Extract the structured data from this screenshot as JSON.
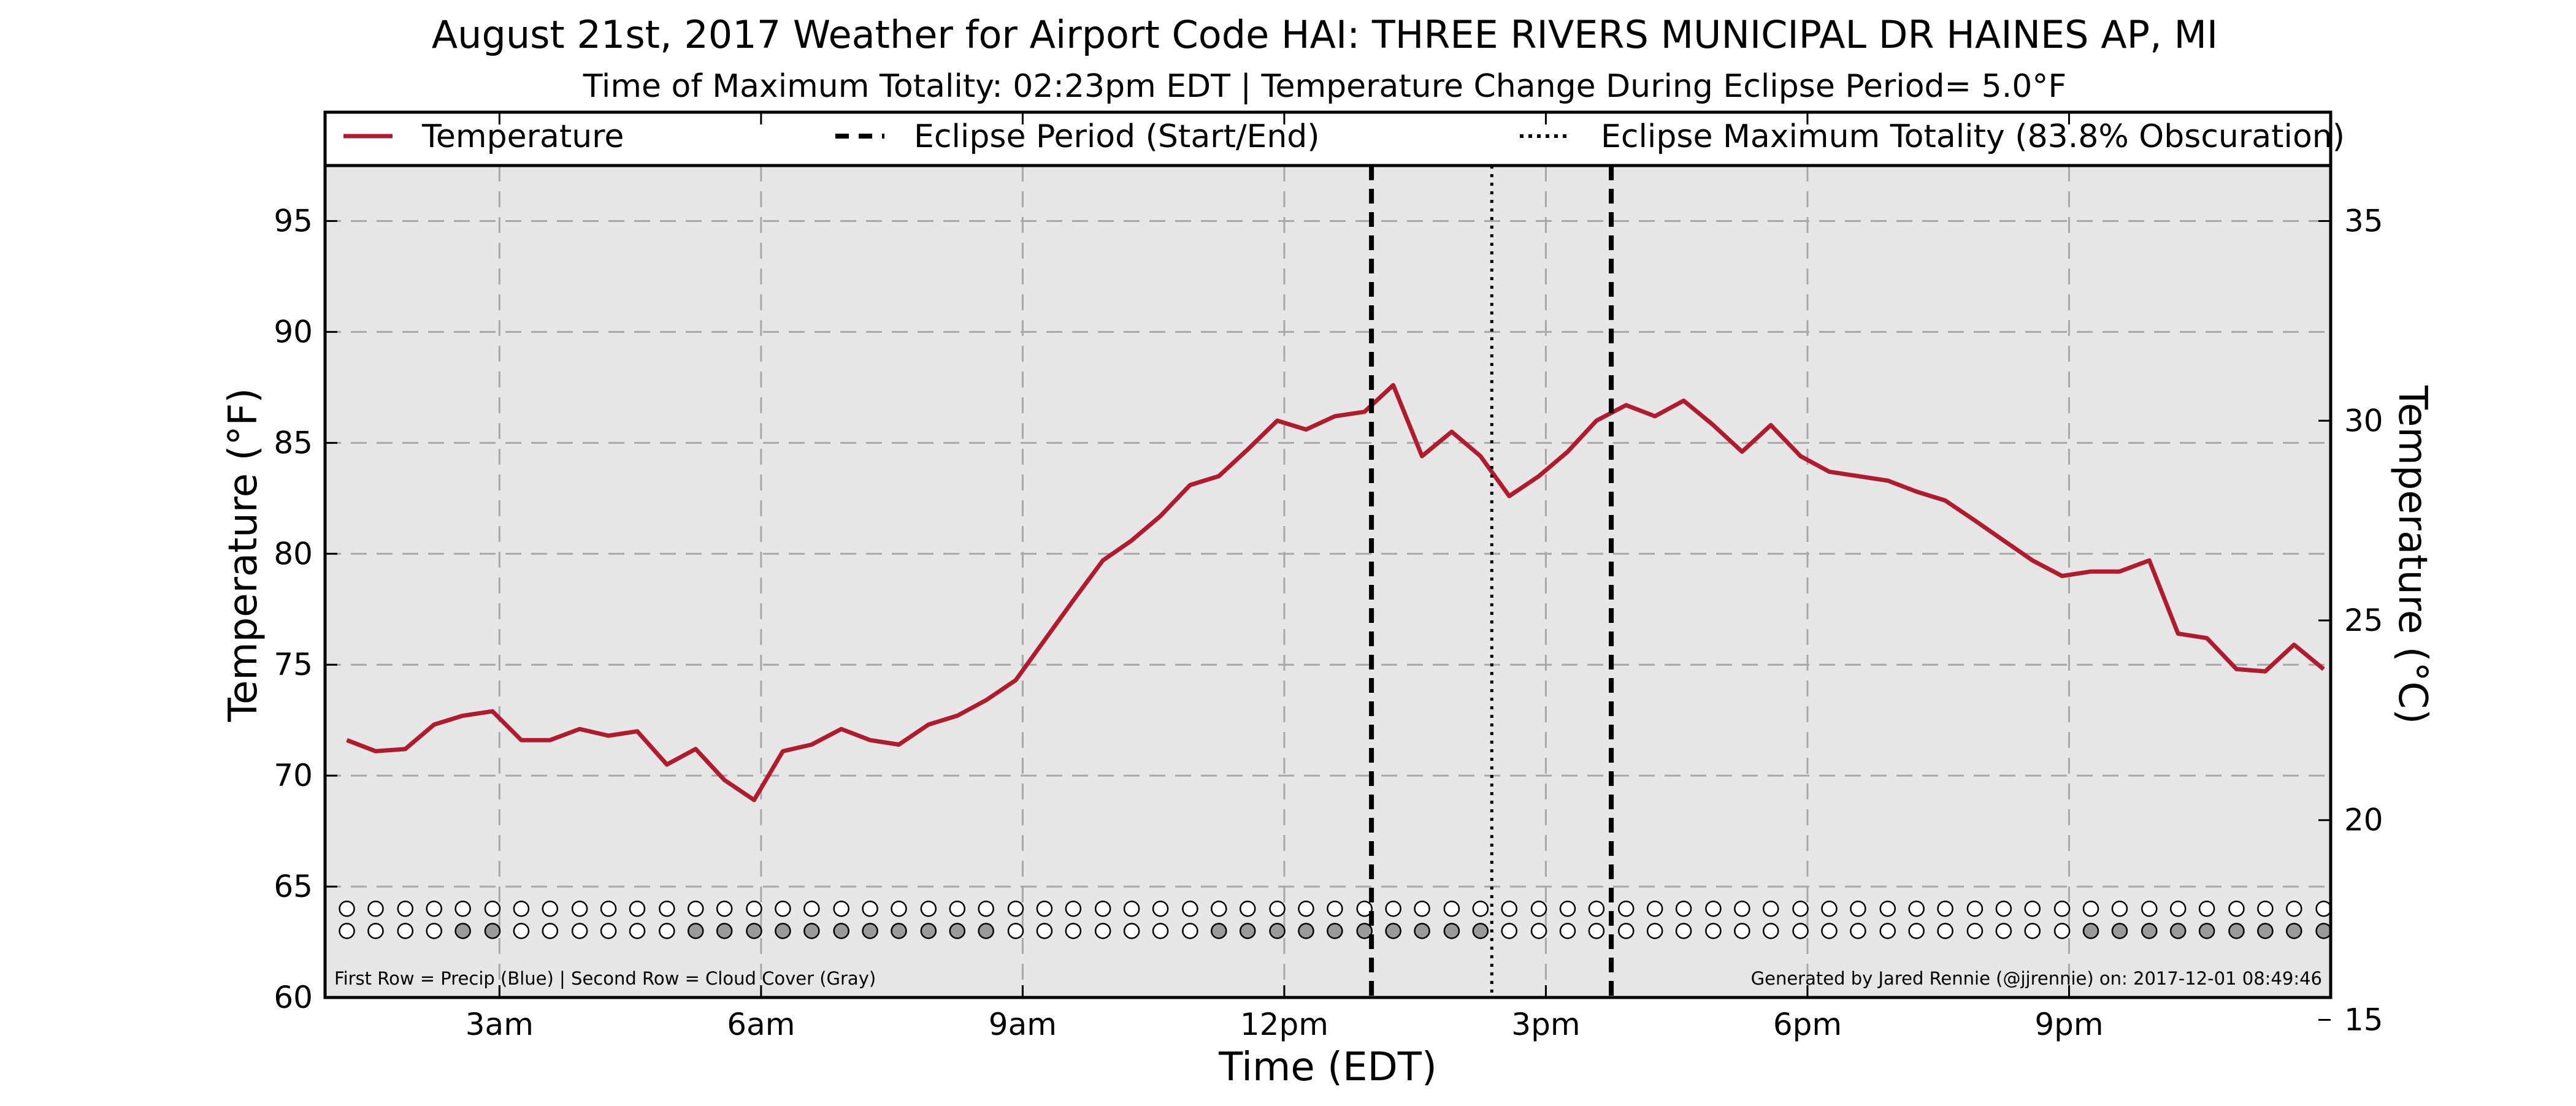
{
  "chart_data": {
    "type": "line",
    "title": "August 21st, 2017 Weather for Airport Code HAI: THREE RIVERS MUNICIPAL DR HAINES AP, MI",
    "subtitle": "Time of Maximum Totality: 02:23pm EDT | Temperature Change During Eclipse Period= 5.0°F",
    "xlabel": "Time (EDT)",
    "ylabel_left": "Temperature (°F)",
    "ylabel_right": "Temperature (°C)",
    "x_unit": "hours after midnight EDT",
    "xlim": [
      1.0,
      24.0
    ],
    "ylim_left": [
      60,
      97.5
    ],
    "ylim_right": [
      15.56,
      36.39
    ],
    "x_ticks": [
      {
        "value": 3,
        "label": "3am"
      },
      {
        "value": 6,
        "label": "6am"
      },
      {
        "value": 9,
        "label": "9am"
      },
      {
        "value": 12,
        "label": "12pm"
      },
      {
        "value": 15,
        "label": "3pm"
      },
      {
        "value": 18,
        "label": "6pm"
      },
      {
        "value": 21,
        "label": "9pm"
      }
    ],
    "y_ticks_left": [
      {
        "value": 60,
        "label": "60"
      },
      {
        "value": 65,
        "label": "65"
      },
      {
        "value": 70,
        "label": "70"
      },
      {
        "value": 75,
        "label": "75"
      },
      {
        "value": 80,
        "label": "80"
      },
      {
        "value": 85,
        "label": "85"
      },
      {
        "value": 90,
        "label": "90"
      },
      {
        "value": 95,
        "label": "95"
      }
    ],
    "y_ticks_right": [
      {
        "value": 15,
        "label": "15"
      },
      {
        "value": 20,
        "label": "20"
      },
      {
        "value": 25,
        "label": "25"
      },
      {
        "value": 30,
        "label": "30"
      },
      {
        "value": 35,
        "label": "35"
      }
    ],
    "grid": true,
    "legend_position": "top",
    "legend": [
      {
        "label": "Temperature",
        "style": "solid",
        "color": "#b01c2e"
      },
      {
        "label": "Eclipse Period (Start/End)",
        "style": "dashed",
        "color": "#000000"
      },
      {
        "label": "Eclipse Maximum Totality (83.8% Obscuration)",
        "style": "dotted",
        "color": "#000000"
      }
    ],
    "series": [
      {
        "name": "Temperature",
        "color": "#b01c2e",
        "points": [
          [
            1.25,
            71.6
          ],
          [
            1.58,
            71.1
          ],
          [
            1.92,
            71.2
          ],
          [
            2.25,
            72.3
          ],
          [
            2.58,
            72.7
          ],
          [
            2.92,
            72.9
          ],
          [
            3.25,
            71.6
          ],
          [
            3.58,
            71.6
          ],
          [
            3.92,
            72.1
          ],
          [
            4.25,
            71.8
          ],
          [
            4.58,
            72.0
          ],
          [
            4.92,
            70.5
          ],
          [
            5.25,
            71.2
          ],
          [
            5.58,
            69.8
          ],
          [
            5.92,
            68.9
          ],
          [
            6.25,
            71.1
          ],
          [
            6.58,
            71.4
          ],
          [
            6.92,
            72.1
          ],
          [
            7.25,
            71.6
          ],
          [
            7.58,
            71.4
          ],
          [
            7.92,
            72.3
          ],
          [
            8.25,
            72.7
          ],
          [
            8.58,
            73.4
          ],
          [
            8.92,
            74.3
          ],
          [
            9.25,
            76.1
          ],
          [
            9.58,
            77.9
          ],
          [
            9.92,
            79.7
          ],
          [
            10.25,
            80.6
          ],
          [
            10.58,
            81.7
          ],
          [
            10.92,
            83.1
          ],
          [
            11.25,
            83.5
          ],
          [
            11.58,
            84.7
          ],
          [
            11.92,
            86.0
          ],
          [
            12.25,
            85.6
          ],
          [
            12.58,
            86.2
          ],
          [
            12.92,
            86.4
          ],
          [
            13.25,
            87.6
          ],
          [
            13.58,
            84.4
          ],
          [
            13.92,
            85.5
          ],
          [
            14.25,
            84.4
          ],
          [
            14.58,
            82.6
          ],
          [
            14.92,
            83.5
          ],
          [
            15.25,
            84.6
          ],
          [
            15.58,
            86.0
          ],
          [
            15.92,
            86.7
          ],
          [
            16.25,
            86.2
          ],
          [
            16.58,
            86.9
          ],
          [
            16.92,
            85.8
          ],
          [
            17.25,
            84.6
          ],
          [
            17.58,
            85.8
          ],
          [
            17.92,
            84.4
          ],
          [
            18.25,
            83.7
          ],
          [
            18.58,
            83.5
          ],
          [
            18.92,
            83.3
          ],
          [
            19.25,
            82.8
          ],
          [
            19.58,
            82.4
          ],
          [
            19.92,
            81.5
          ],
          [
            20.25,
            80.6
          ],
          [
            20.58,
            79.7
          ],
          [
            20.92,
            79.0
          ],
          [
            21.25,
            79.2
          ],
          [
            21.58,
            79.2
          ],
          [
            21.92,
            79.7
          ],
          [
            22.25,
            76.4
          ],
          [
            22.58,
            76.2
          ],
          [
            22.92,
            74.8
          ],
          [
            23.25,
            74.7
          ],
          [
            23.58,
            75.9
          ],
          [
            23.92,
            74.8
          ]
        ]
      }
    ],
    "eclipse_period": {
      "start": 13.0,
      "end": 15.75
    },
    "max_totality": 14.38,
    "precip_row": {
      "y": 64.0,
      "description": "First Row = Precip (Blue)",
      "x": [
        1.25,
        1.58,
        1.92,
        2.25,
        2.58,
        2.92,
        3.25,
        3.58,
        3.92,
        4.25,
        4.58,
        4.92,
        5.25,
        5.58,
        5.92,
        6.25,
        6.58,
        6.92,
        7.25,
        7.58,
        7.92,
        8.25,
        8.58,
        8.92,
        9.25,
        9.58,
        9.92,
        10.25,
        10.58,
        10.92,
        11.25,
        11.58,
        11.92,
        12.25,
        12.58,
        12.92,
        13.25,
        13.58,
        13.92,
        14.25,
        14.58,
        14.92,
        15.25,
        15.58,
        15.92,
        16.25,
        16.58,
        16.92,
        17.25,
        17.58,
        17.92,
        18.25,
        18.58,
        18.92,
        19.25,
        19.58,
        19.92,
        20.25,
        20.58,
        20.92,
        21.25,
        21.58,
        21.92,
        22.25,
        22.58,
        22.92,
        23.25,
        23.58,
        23.92
      ],
      "filled": [
        0,
        0,
        0,
        0,
        0,
        0,
        0,
        0,
        0,
        0,
        0,
        0,
        0,
        0,
        0,
        0,
        0,
        0,
        0,
        0,
        0,
        0,
        0,
        0,
        0,
        0,
        0,
        0,
        0,
        0,
        0,
        0,
        0,
        0,
        0,
        0,
        0,
        0,
        0,
        0,
        0,
        0,
        0,
        0,
        0,
        0,
        0,
        0,
        0,
        0,
        0,
        0,
        0,
        0,
        0,
        0,
        0,
        0,
        0,
        0,
        0,
        0,
        0,
        0,
        0,
        0,
        0,
        0,
        0
      ]
    },
    "cloud_row": {
      "y": 63.0,
      "description": "Second Row = Cloud Cover (Gray)",
      "x": [
        1.25,
        1.58,
        1.92,
        2.25,
        2.58,
        2.92,
        3.25,
        3.58,
        3.92,
        4.25,
        4.58,
        4.92,
        5.25,
        5.58,
        5.92,
        6.25,
        6.58,
        6.92,
        7.25,
        7.58,
        7.92,
        8.25,
        8.58,
        8.92,
        9.25,
        9.58,
        9.92,
        10.25,
        10.58,
        10.92,
        11.25,
        11.58,
        11.92,
        12.25,
        12.58,
        12.92,
        13.25,
        13.58,
        13.92,
        14.25,
        14.58,
        14.92,
        15.25,
        15.58,
        15.92,
        16.25,
        16.58,
        16.92,
        17.25,
        17.58,
        17.92,
        18.25,
        18.58,
        18.92,
        19.25,
        19.58,
        19.92,
        20.25,
        20.58,
        20.92,
        21.25,
        21.58,
        21.92,
        22.25,
        22.58,
        22.92,
        23.25,
        23.58,
        23.92
      ],
      "filled": [
        0,
        0,
        0,
        0,
        1,
        1,
        0,
        0,
        0,
        0,
        0,
        0,
        1,
        1,
        1,
        1,
        1,
        1,
        1,
        1,
        1,
        1,
        1,
        0,
        0,
        0,
        0,
        0,
        0,
        0,
        1,
        1,
        1,
        1,
        1,
        1,
        1,
        1,
        1,
        1,
        0,
        0,
        0,
        0,
        0,
        0,
        0,
        0,
        0,
        0,
        0,
        0,
        0,
        0,
        0,
        0,
        0,
        0,
        0,
        0,
        1,
        1,
        1,
        1,
        1,
        1,
        1,
        1,
        1
      ]
    },
    "fill_colors": {
      "precip": "#4a7fd6",
      "cloud": "#9a9a9a",
      "empty": "#ffffff",
      "plot_bg": "#e6e6e6"
    },
    "footnote_left": "First Row = Precip (Blue) | Second Row = Cloud Cover (Gray)",
    "footnote_right": "Generated by Jared Rennie (@jjrennie) on: 2017-12-01 08:49:46"
  }
}
